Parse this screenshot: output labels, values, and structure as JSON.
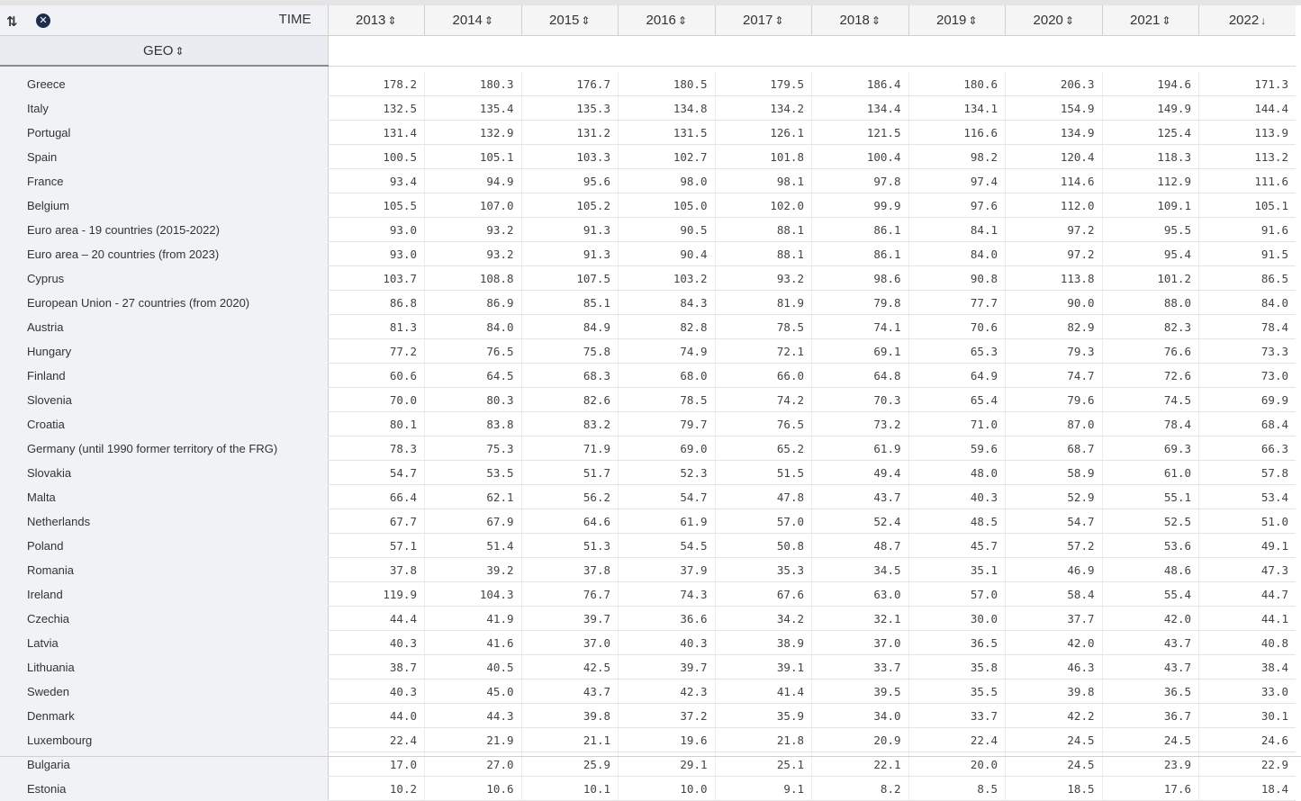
{
  "header": {
    "time_label": "TIME",
    "geo_label": "GEO",
    "sort_updown": "⇕",
    "sort_desc": "↓",
    "sort_icon": "⇅",
    "clear_icon": "✕",
    "years": [
      {
        "label": "2013",
        "sort": "⇕"
      },
      {
        "label": "2014",
        "sort": "⇕"
      },
      {
        "label": "2015",
        "sort": "⇕"
      },
      {
        "label": "2016",
        "sort": "⇕"
      },
      {
        "label": "2017",
        "sort": "⇕"
      },
      {
        "label": "2018",
        "sort": "⇕"
      },
      {
        "label": "2019",
        "sort": "⇕"
      },
      {
        "label": "2020",
        "sort": "⇕"
      },
      {
        "label": "2021",
        "sort": "⇕"
      },
      {
        "label": "2022",
        "sort": "↓"
      }
    ]
  },
  "rows": [
    {
      "geo": "Greece",
      "values": [
        "178.2",
        "180.3",
        "176.7",
        "180.5",
        "179.5",
        "186.4",
        "180.6",
        "206.3",
        "194.6",
        "171.3"
      ]
    },
    {
      "geo": "Italy",
      "values": [
        "132.5",
        "135.4",
        "135.3",
        "134.8",
        "134.2",
        "134.4",
        "134.1",
        "154.9",
        "149.9",
        "144.4"
      ]
    },
    {
      "geo": "Portugal",
      "values": [
        "131.4",
        "132.9",
        "131.2",
        "131.5",
        "126.1",
        "121.5",
        "116.6",
        "134.9",
        "125.4",
        "113.9"
      ]
    },
    {
      "geo": "Spain",
      "values": [
        "100.5",
        "105.1",
        "103.3",
        "102.7",
        "101.8",
        "100.4",
        "98.2",
        "120.4",
        "118.3",
        "113.2"
      ]
    },
    {
      "geo": "France",
      "values": [
        "93.4",
        "94.9",
        "95.6",
        "98.0",
        "98.1",
        "97.8",
        "97.4",
        "114.6",
        "112.9",
        "111.6"
      ]
    },
    {
      "geo": "Belgium",
      "values": [
        "105.5",
        "107.0",
        "105.2",
        "105.0",
        "102.0",
        "99.9",
        "97.6",
        "112.0",
        "109.1",
        "105.1"
      ]
    },
    {
      "geo": "Euro area - 19 countries (2015-2022)",
      "values": [
        "93.0",
        "93.2",
        "91.3",
        "90.5",
        "88.1",
        "86.1",
        "84.1",
        "97.2",
        "95.5",
        "91.6"
      ]
    },
    {
      "geo": "Euro area – 20 countries (from 2023)",
      "values": [
        "93.0",
        "93.2",
        "91.3",
        "90.4",
        "88.1",
        "86.1",
        "84.0",
        "97.2",
        "95.4",
        "91.5"
      ]
    },
    {
      "geo": "Cyprus",
      "values": [
        "103.7",
        "108.8",
        "107.5",
        "103.2",
        "93.2",
        "98.6",
        "90.8",
        "113.8",
        "101.2",
        "86.5"
      ]
    },
    {
      "geo": "European Union - 27 countries (from 2020)",
      "values": [
        "86.8",
        "86.9",
        "85.1",
        "84.3",
        "81.9",
        "79.8",
        "77.7",
        "90.0",
        "88.0",
        "84.0"
      ]
    },
    {
      "geo": "Austria",
      "values": [
        "81.3",
        "84.0",
        "84.9",
        "82.8",
        "78.5",
        "74.1",
        "70.6",
        "82.9",
        "82.3",
        "78.4"
      ]
    },
    {
      "geo": "Hungary",
      "values": [
        "77.2",
        "76.5",
        "75.8",
        "74.9",
        "72.1",
        "69.1",
        "65.3",
        "79.3",
        "76.6",
        "73.3"
      ]
    },
    {
      "geo": "Finland",
      "values": [
        "60.6",
        "64.5",
        "68.3",
        "68.0",
        "66.0",
        "64.8",
        "64.9",
        "74.7",
        "72.6",
        "73.0"
      ]
    },
    {
      "geo": "Slovenia",
      "values": [
        "70.0",
        "80.3",
        "82.6",
        "78.5",
        "74.2",
        "70.3",
        "65.4",
        "79.6",
        "74.5",
        "69.9"
      ]
    },
    {
      "geo": "Croatia",
      "values": [
        "80.1",
        "83.8",
        "83.2",
        "79.7",
        "76.5",
        "73.2",
        "71.0",
        "87.0",
        "78.4",
        "68.4"
      ]
    },
    {
      "geo": "Germany (until 1990 former territory of the FRG)",
      "values": [
        "78.3",
        "75.3",
        "71.9",
        "69.0",
        "65.2",
        "61.9",
        "59.6",
        "68.7",
        "69.3",
        "66.3"
      ]
    },
    {
      "geo": "Slovakia",
      "values": [
        "54.7",
        "53.5",
        "51.7",
        "52.3",
        "51.5",
        "49.4",
        "48.0",
        "58.9",
        "61.0",
        "57.8"
      ]
    },
    {
      "geo": "Malta",
      "values": [
        "66.4",
        "62.1",
        "56.2",
        "54.7",
        "47.8",
        "43.7",
        "40.3",
        "52.9",
        "55.1",
        "53.4"
      ]
    },
    {
      "geo": "Netherlands",
      "values": [
        "67.7",
        "67.9",
        "64.6",
        "61.9",
        "57.0",
        "52.4",
        "48.5",
        "54.7",
        "52.5",
        "51.0"
      ]
    },
    {
      "geo": "Poland",
      "values": [
        "57.1",
        "51.4",
        "51.3",
        "54.5",
        "50.8",
        "48.7",
        "45.7",
        "57.2",
        "53.6",
        "49.1"
      ]
    },
    {
      "geo": "Romania",
      "values": [
        "37.8",
        "39.2",
        "37.8",
        "37.9",
        "35.3",
        "34.5",
        "35.1",
        "46.9",
        "48.6",
        "47.3"
      ]
    },
    {
      "geo": "Ireland",
      "values": [
        "119.9",
        "104.3",
        "76.7",
        "74.3",
        "67.6",
        "63.0",
        "57.0",
        "58.4",
        "55.4",
        "44.7"
      ]
    },
    {
      "geo": "Czechia",
      "values": [
        "44.4",
        "41.9",
        "39.7",
        "36.6",
        "34.2",
        "32.1",
        "30.0",
        "37.7",
        "42.0",
        "44.1"
      ]
    },
    {
      "geo": "Latvia",
      "values": [
        "40.3",
        "41.6",
        "37.0",
        "40.3",
        "38.9",
        "37.0",
        "36.5",
        "42.0",
        "43.7",
        "40.8"
      ]
    },
    {
      "geo": "Lithuania",
      "values": [
        "38.7",
        "40.5",
        "42.5",
        "39.7",
        "39.1",
        "33.7",
        "35.8",
        "46.3",
        "43.7",
        "38.4"
      ]
    },
    {
      "geo": "Sweden",
      "values": [
        "40.3",
        "45.0",
        "43.7",
        "42.3",
        "41.4",
        "39.5",
        "35.5",
        "39.8",
        "36.5",
        "33.0"
      ]
    },
    {
      "geo": "Denmark",
      "values": [
        "44.0",
        "44.3",
        "39.8",
        "37.2",
        "35.9",
        "34.0",
        "33.7",
        "42.2",
        "36.7",
        "30.1"
      ]
    },
    {
      "geo": "Luxembourg",
      "values": [
        "22.4",
        "21.9",
        "21.1",
        "19.6",
        "21.8",
        "20.9",
        "22.4",
        "24.5",
        "24.5",
        "24.6"
      ]
    },
    {
      "geo": "Bulgaria",
      "values": [
        "17.0",
        "27.0",
        "25.9",
        "29.1",
        "25.1",
        "22.1",
        "20.0",
        "24.5",
        "23.9",
        "22.9"
      ]
    },
    {
      "geo": "Estonia",
      "values": [
        "10.2",
        "10.6",
        "10.1",
        "10.0",
        "9.1",
        "8.2",
        "8.5",
        "18.5",
        "17.6",
        "18.4"
      ]
    }
  ]
}
